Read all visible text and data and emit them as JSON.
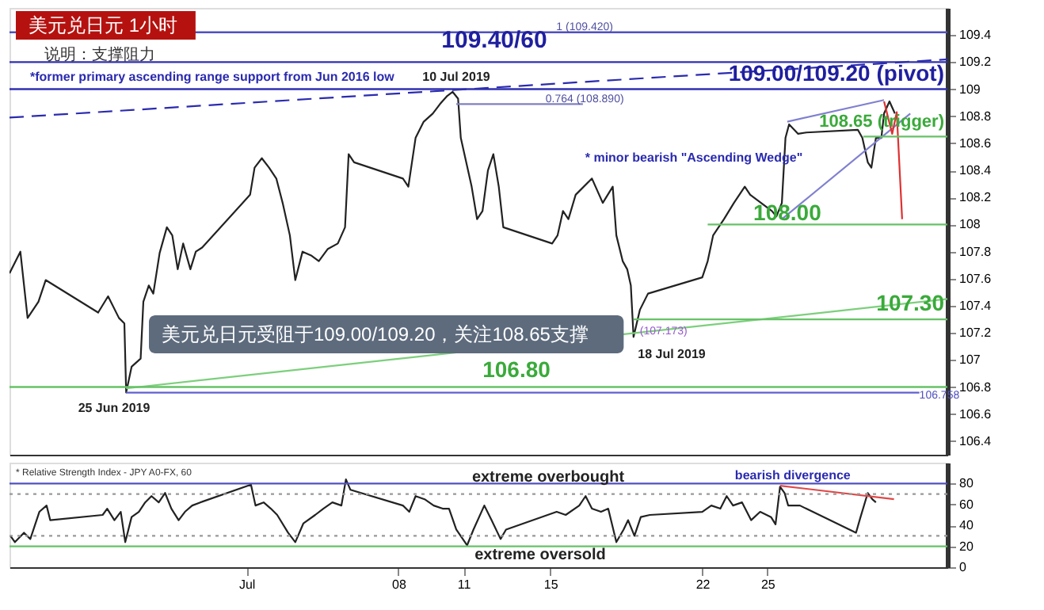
{
  "chart_data": [
    {
      "type": "line",
      "title": "美元兑日元 1小时",
      "subtitle": "说明：支撑阻力",
      "xlim": [
        "2019-06-20T02:00",
        "2019-08-02T07:00"
      ],
      "ylim": [
        106.3,
        109.6
      ],
      "tick_labels": "y",
      "yticks": [
        106.4,
        106.6,
        106.8,
        107.0,
        107.2,
        107.4,
        107.6,
        107.8,
        108.0,
        108.2,
        108.4,
        108.6,
        108.8,
        109.0,
        109.2,
        109.4
      ],
      "series": [
        {
          "color": "#222222",
          "line_style": "solid",
          "x": [
            "2019-06-20T02:00",
            "2019-06-20T14:00",
            "2019-06-20T22:00",
            "2019-06-21T10:00",
            "2019-06-21T18:00",
            "2019-06-24T04:00",
            "2019-06-24T15:00",
            "2019-06-25T03:00",
            "2019-06-25T09:00",
            "2019-06-25T11:00",
            "2019-06-25T17:00",
            "2019-06-26T03:00",
            "2019-06-26T06:00",
            "2019-06-26T12:00",
            "2019-06-26T17:00",
            "2019-06-27T00:00",
            "2019-06-27T08:00",
            "2019-06-27T14:00",
            "2019-06-27T20:00",
            "2019-06-28T02:00",
            "2019-06-28T10:00",
            "2019-06-28T16:00",
            "2019-06-28T23:00",
            "2019-07-01T04:00",
            "2019-07-01T09:00",
            "2019-07-01T17:00",
            "2019-07-02T01:00",
            "2019-07-02T09:00",
            "2019-07-02T16:00",
            "2019-07-03T00:00",
            "2019-07-03T06:00",
            "2019-07-03T14:00",
            "2019-07-04T00:00",
            "2019-07-04T08:00",
            "2019-07-04T18:00",
            "2019-07-05T05:00",
            "2019-07-05T13:00",
            "2019-07-05T17:00",
            "2019-07-05T23:00",
            "2019-07-08T05:00",
            "2019-07-08T11:00",
            "2019-07-08T19:00",
            "2019-07-09T04:00",
            "2019-07-09T14:00",
            "2019-07-09T22:00",
            "2019-07-10T06:00",
            "2019-07-10T12:00",
            "2019-07-10T18:00",
            "2019-07-10T21:00",
            "2019-07-11T03:00",
            "2019-07-11T09:00",
            "2019-07-11T15:00",
            "2019-07-11T21:00",
            "2019-07-12T03:00",
            "2019-07-12T09:00",
            "2019-07-12T15:00",
            "2019-07-12T20:00",
            "2019-07-15T02:00",
            "2019-07-15T08:00",
            "2019-07-15T14:00",
            "2019-07-15T20:00",
            "2019-07-16T04:00",
            "2019-07-16T22:00",
            "2019-07-17T10:00",
            "2019-07-17T21:00",
            "2019-07-18T01:00",
            "2019-07-18T08:00",
            "2019-07-18T13:00",
            "2019-07-18T17:00",
            "2019-07-18T20:00",
            "2019-07-19T03:00",
            "2019-07-19T12:00",
            "2019-07-22T00:00",
            "2019-07-22T06:00",
            "2019-07-22T12:00",
            "2019-07-22T18:00",
            "2019-07-23T00:00",
            "2019-07-23T11:00",
            "2019-07-23T23:00",
            "2019-07-24T05:00",
            "2019-07-24T17:00",
            "2019-07-25T05:00",
            "2019-07-25T10:00",
            "2019-07-25T16:00",
            "2019-07-25T20:00",
            "2019-07-26T00:00",
            "2019-07-26T10:00",
            "2019-07-26T19:00",
            "2019-07-29T04:00",
            "2019-07-29T09:00",
            "2019-07-29T15:00",
            "2019-07-29T19:00",
            "2019-07-30T00:00",
            "2019-07-30T06:00",
            "2019-07-30T09:00",
            "2019-07-30T15:00",
            "2019-07-30T21:00"
          ],
          "values": [
            107.64,
            107.8,
            107.31,
            107.43,
            107.59,
            107.35,
            107.47,
            107.31,
            107.27,
            106.76,
            106.95,
            107.01,
            107.43,
            107.55,
            107.49,
            107.79,
            107.98,
            107.92,
            107.67,
            107.86,
            107.67,
            107.8,
            107.83,
            108.22,
            108.42,
            108.49,
            108.42,
            108.34,
            108.16,
            107.92,
            107.59,
            107.8,
            107.77,
            107.73,
            107.82,
            107.86,
            107.98,
            108.52,
            108.46,
            108.34,
            108.28,
            108.64,
            108.76,
            108.82,
            108.89,
            108.95,
            108.98,
            108.93,
            108.64,
            108.46,
            108.28,
            108.04,
            108.1,
            108.4,
            108.52,
            108.28,
            107.98,
            107.86,
            107.92,
            108.1,
            108.04,
            108.22,
            108.34,
            108.16,
            108.28,
            107.92,
            107.73,
            107.67,
            107.55,
            107.17,
            107.37,
            107.49,
            107.61,
            107.73,
            107.92,
            107.98,
            108.04,
            108.16,
            108.28,
            108.22,
            108.16,
            108.1,
            108.06,
            108.16,
            108.64,
            108.74,
            108.67,
            108.68,
            108.7,
            108.64,
            108.46,
            108.42,
            108.64,
            108.64,
            108.82,
            108.91,
            108.82
          ]
        },
        {
          "color": "#2b2bb0",
          "line_style": "dashed",
          "x": [
            "2019-06-20T02:00",
            "2019-08-02T07:00"
          ],
          "values": [
            108.79,
            109.22
          ]
        },
        {
          "color": "#8080d0",
          "line_style": "solid",
          "x": [
            "2019-07-25T22:00",
            "2019-07-30T09:00"
          ],
          "values": [
            108.76,
            108.92
          ]
        },
        {
          "color": "#8080d0",
          "line_style": "solid",
          "x": [
            "2019-07-25T16:00",
            "2019-07-31T14:00"
          ],
          "values": [
            108.04,
            108.82
          ]
        },
        {
          "color": "#e03030",
          "line_style": "solid",
          "x": [
            "2019-07-30T09:00",
            "2019-07-30T18:00",
            "2019-07-30T23:00",
            "2019-07-31T05:00"
          ],
          "values": [
            108.91,
            108.67,
            108.83,
            108.04
          ]
        },
        {
          "color": "#7ccf7c",
          "line_style": "solid",
          "x": [
            "2019-06-25T11:00",
            "2019-08-02T07:00"
          ],
          "values": [
            106.79,
            107.45
          ]
        },
        {
          "color": "#66c266",
          "line_style": "solid",
          "x": [
            "2019-07-22T06:00",
            "2019-08-02T07:00"
          ],
          "values": [
            108.0,
            108.0
          ]
        },
        {
          "color": "#66c266",
          "line_style": "solid",
          "x": [
            "2019-07-18T20:00",
            "2019-08-02T07:00"
          ],
          "values": [
            107.3,
            107.3
          ]
        },
        {
          "color": "#66c266",
          "line_style": "solid",
          "x": [
            "2019-07-29T10:00",
            "2019-08-02T07:00"
          ],
          "values": [
            108.65,
            108.65
          ]
        },
        {
          "color": "#6060d0",
          "line_style": "solid",
          "x": [
            "2019-06-25T11:00",
            "2019-08-01T00:00"
          ],
          "values": [
            106.758,
            106.758
          ]
        },
        {
          "color": "#8080c0",
          "line_style": "solid",
          "x": [
            "2019-07-10T16:00",
            "2019-07-16T12:00"
          ],
          "values": [
            108.89,
            108.89
          ]
        }
      ],
      "ref_lines": [
        {
          "axis": "y",
          "value": 109.42,
          "color": "#5050c0"
        },
        {
          "axis": "y",
          "value": 109.2,
          "color": "#3030b0"
        },
        {
          "axis": "y",
          "value": 109.0,
          "color": "#3030b0"
        },
        {
          "axis": "y",
          "value": 106.8,
          "color": "#66c266"
        }
      ],
      "annotations": [
        {
          "text": "1 (109.420)",
          "x": "2019-07-16T14:00",
          "y": 109.46
        },
        {
          "text": "0.764 (108.890)",
          "x": "2019-07-16T14:00",
          "y": 108.93
        },
        {
          "text": "108.00",
          "x": "2019-07-25T22:00",
          "y": 108.08
        },
        {
          "text": "(107.173)",
          "x": "2019-07-19T03:00",
          "y": 107.21
        },
        {
          "text": "106.758",
          "x": "2019-08-01T00:00",
          "y": 106.74
        },
        "109.40/60",
        "109.00/109.20 (pivot)",
        "108.65 (trigger)",
        "107.30",
        "*former primary ascending range support from Jun 2016 low",
        "10 Jul 2019",
        "* minor bearish  \"Ascending Wedge\"",
        "106.80",
        "25 Jun 2019",
        "18 Jul 2019",
        "美元兑日元受阻于109.00/109.20，关注108.65支撑"
      ]
    },
    {
      "type": "line",
      "xlim": [
        "2019-06-20T02:00",
        "2019-08-02T07:00"
      ],
      "ylim": [
        0,
        100
      ],
      "yticks": [
        0,
        20,
        40,
        60,
        80
      ],
      "xticks": [
        {
          "value": "2019-07-01",
          "label": "Jul"
        },
        {
          "value": "2019-07-08",
          "label": "08"
        },
        {
          "value": "2019-07-11",
          "label": "11"
        },
        {
          "value": "2019-07-15",
          "label": "15"
        },
        {
          "value": "2019-07-22",
          "label": "22"
        },
        {
          "value": "2019-07-25",
          "label": "25"
        }
      ],
      "series": [
        {
          "color": "#222222",
          "line_style": "solid",
          "x": [
            "2019-06-20T03:00",
            "2019-06-20T08:00",
            "2019-06-20T18:00",
            "2019-06-21T01:00",
            "2019-06-21T11:00",
            "2019-06-21T19:00",
            "2019-06-21T23:00",
            "2019-06-24T09:00",
            "2019-06-24T14:00",
            "2019-06-24T22:00",
            "2019-06-25T05:00",
            "2019-06-25T10:00",
            "2019-06-25T17:00",
            "2019-06-26T01:00",
            "2019-06-26T08:00",
            "2019-06-26T15:00",
            "2019-06-26T23:00",
            "2019-06-27T06:00",
            "2019-06-27T13:00",
            "2019-06-27T21:00",
            "2019-06-28T04:00",
            "2019-06-28T12:00",
            "2019-06-28T21:00",
            "2019-07-01T05:00",
            "2019-07-01T10:00",
            "2019-07-01T19:00",
            "2019-07-02T03:00",
            "2019-07-02T10:00",
            "2019-07-02T22:00",
            "2019-07-03T06:00",
            "2019-07-03T15:00",
            "2019-07-04T04:00",
            "2019-07-04T13:00",
            "2019-07-04T23:00",
            "2019-07-05T09:00",
            "2019-07-05T14:00",
            "2019-07-05T19:00",
            "2019-07-08T05:00",
            "2019-07-08T12:00",
            "2019-07-08T19:00",
            "2019-07-09T05:00",
            "2019-07-09T15:00",
            "2019-07-10T01:00",
            "2019-07-10T08:00",
            "2019-07-10T16:00",
            "2019-07-11T04:00",
            "2019-07-11T11:00",
            "2019-07-11T23:00",
            "2019-07-12T07:00",
            "2019-07-12T17:00",
            "2019-07-12T23:00",
            "2019-07-15T07:00",
            "2019-07-15T17:00",
            "2019-07-16T08:00",
            "2019-07-16T15:00",
            "2019-07-16T22:00",
            "2019-07-17T08:00",
            "2019-07-17T16:00",
            "2019-07-18T01:00",
            "2019-07-18T09:00",
            "2019-07-18T14:00",
            "2019-07-18T21:00",
            "2019-07-19T04:00",
            "2019-07-19T14:00",
            "2019-07-22T00:00",
            "2019-07-22T10:00",
            "2019-07-22T20:00",
            "2019-07-23T03:00",
            "2019-07-23T10:00",
            "2019-07-23T20:00",
            "2019-07-24T06:00",
            "2019-07-24T16:00",
            "2019-07-25T04:00",
            "2019-07-25T09:00",
            "2019-07-25T14:00",
            "2019-07-25T19:00",
            "2019-07-25T23:00",
            "2019-07-26T12:00",
            "2019-07-26T19:00",
            "2019-07-29T02:00",
            "2019-07-29T07:00",
            "2019-07-29T15:00",
            "2019-07-29T20:00",
            "2019-07-30T00:00"
          ],
          "values": [
            30,
            24,
            33,
            27,
            53,
            59,
            45,
            50,
            56,
            45,
            53,
            24,
            48,
            53,
            62,
            68,
            62,
            71,
            56,
            45,
            53,
            59,
            62,
            79,
            59,
            62,
            56,
            50,
            33,
            24,
            42,
            50,
            56,
            62,
            59,
            84,
            74,
            59,
            53,
            68,
            65,
            59,
            56,
            56,
            36,
            21,
            36,
            59,
            45,
            27,
            36,
            53,
            50,
            59,
            68,
            56,
            53,
            56,
            24,
            36,
            45,
            30,
            48,
            50,
            53,
            59,
            56,
            68,
            59,
            62,
            45,
            53,
            48,
            41,
            77,
            71,
            59,
            59,
            56,
            33,
            48,
            71,
            65,
            62
          ]
        },
        {
          "color": "#e04848",
          "line_style": "solid",
          "x": [
            "2019-07-25T14:00",
            "2019-07-30T20:00"
          ],
          "values": [
            78,
            65
          ]
        }
      ],
      "ref_lines": [
        {
          "axis": "y",
          "value": 80,
          "color": "#5050c0",
          "line_style": "solid"
        },
        {
          "axis": "y",
          "value": 70,
          "color": "#999999",
          "line_style": "dotted"
        },
        {
          "axis": "y",
          "value": 30,
          "color": "#999999",
          "line_style": "dotted"
        },
        {
          "axis": "y",
          "value": 20,
          "color": "#66c266",
          "line_style": "solid"
        }
      ],
      "annotations": [
        {
          "text": "bearish divergence",
          "x": "2019-07-26T04:00",
          "y": 87
        },
        "* Relative Strength Index - JPY A0-FX, 60",
        "extreme overbought",
        "extreme oversold"
      ]
    }
  ]
}
